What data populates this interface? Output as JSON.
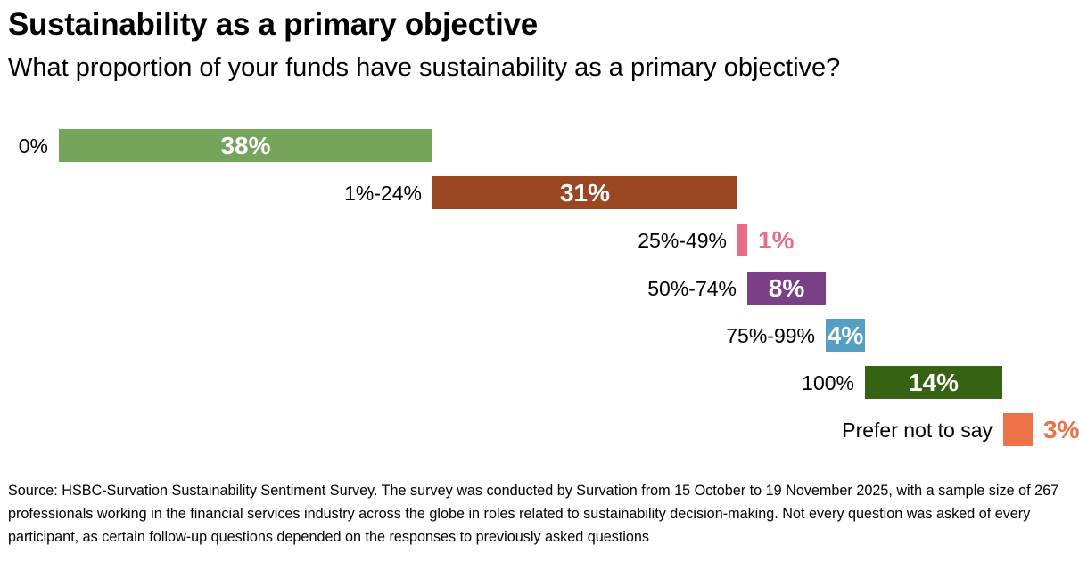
{
  "chart_data": {
    "type": "bar",
    "title": "Sustainability as a primary objective",
    "subtitle": "What proportion of your funds have sustainability as a primary objective?",
    "layout": "waterfall (stacked horizontally, one row per category)",
    "categories": [
      "0%",
      "1%-24%",
      "25%-49%",
      "50%-74%",
      "75%-99%",
      "100%",
      "Prefer not to say"
    ],
    "values": [
      38,
      31,
      1,
      8,
      4,
      14,
      3
    ],
    "data_labels": [
      "38%",
      "31%",
      "1%",
      "8%",
      "4%",
      "14%",
      "3%"
    ],
    "colors": [
      "#75a55a",
      "#9b4722",
      "#e96d84",
      "#7b3f87",
      "#55a0c0",
      "#356213",
      "#ec7247"
    ],
    "grid": false,
    "legend": "none"
  },
  "source": "Source: HSBC-Survation Sustainability Sentiment Survey. The survey was conducted by Survation from 15 October to 19 November 2025, with a sample size of 267 professionals working in the financial services industry across the globe in roles related to sustainability decision-making. Not every question was asked of every participant, as certain follow-up questions depended on the responses to previously asked questions"
}
